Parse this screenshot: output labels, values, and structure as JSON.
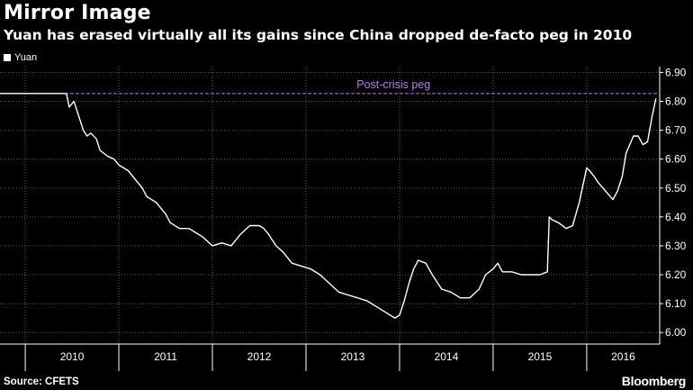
{
  "header": {
    "title": "Mirror Image",
    "subtitle": "Yuan has erased virtually all its gains since China dropped de-facto peg in 2010"
  },
  "legend": {
    "label": "Yuan"
  },
  "footer": {
    "source": "Source: CFETS",
    "brand": "Bloomberg"
  },
  "colors": {
    "background": "#000000",
    "line": "#ffffff",
    "grid": "#5a5a5a",
    "peg": "#b47ee0"
  },
  "chart_data": {
    "type": "line",
    "title": "Mirror Image",
    "subtitle": "Yuan has erased virtually all its gains since China dropped de-facto peg in 2010",
    "xlabel": "",
    "ylabel": "",
    "y_axis_side": "right",
    "ylim": [
      5.96,
      6.92
    ],
    "yticks": [
      6.0,
      6.1,
      6.2,
      6.3,
      6.4,
      6.5,
      6.6,
      6.7,
      6.8,
      6.9
    ],
    "ytick_labels": [
      "6.00",
      "6.10",
      "6.20",
      "6.30",
      "6.40",
      "6.50",
      "6.60",
      "6.70",
      "6.80",
      "6.90"
    ],
    "xlim": [
      2009.73,
      2016.78
    ],
    "x_categories": [
      "2010",
      "2011",
      "2012",
      "2013",
      "2014",
      "2015",
      "2016"
    ],
    "grid": true,
    "legend_position": "top-left",
    "annotations": [
      {
        "type": "hline",
        "y": 6.827,
        "label": "Post-crisis peg",
        "style": "dashed"
      }
    ],
    "series": [
      {
        "name": "Yuan",
        "x": [
          2009.73,
          2009.9,
          2010.1,
          2010.3,
          2010.44,
          2010.47,
          2010.52,
          2010.55,
          2010.6,
          2010.62,
          2010.66,
          2010.7,
          2010.76,
          2010.8,
          2010.88,
          2010.95,
          2011.0,
          2011.1,
          2011.2,
          2011.25,
          2011.3,
          2011.4,
          2011.5,
          2011.55,
          2011.65,
          2011.75,
          2011.8,
          2011.9,
          2012.0,
          2012.1,
          2012.2,
          2012.3,
          2012.4,
          2012.5,
          2012.55,
          2012.6,
          2012.68,
          2012.75,
          2012.85,
          2012.95,
          2013.05,
          2013.15,
          2013.25,
          2013.35,
          2013.45,
          2013.55,
          2013.65,
          2013.75,
          2013.85,
          2013.95,
          2014.0,
          2014.05,
          2014.1,
          2014.15,
          2014.2,
          2014.28,
          2014.35,
          2014.45,
          2014.55,
          2014.65,
          2014.75,
          2014.85,
          2014.92,
          2015.0,
          2015.05,
          2015.1,
          2015.2,
          2015.3,
          2015.4,
          2015.5,
          2015.58,
          2015.6,
          2015.63,
          2015.7,
          2015.78,
          2015.85,
          2015.92,
          2016.0,
          2016.03,
          2016.08,
          2016.12,
          2016.2,
          2016.28,
          2016.33,
          2016.38,
          2016.42,
          2016.5,
          2016.55,
          2016.6,
          2016.65,
          2016.7,
          2016.74
        ],
        "values": [
          6.827,
          6.827,
          6.827,
          6.827,
          6.827,
          6.78,
          6.8,
          6.77,
          6.72,
          6.7,
          6.68,
          6.69,
          6.67,
          6.63,
          6.61,
          6.6,
          6.58,
          6.56,
          6.52,
          6.5,
          6.47,
          6.45,
          6.41,
          6.38,
          6.36,
          6.36,
          6.35,
          6.33,
          6.3,
          6.31,
          6.3,
          6.34,
          6.37,
          6.37,
          6.36,
          6.34,
          6.3,
          6.28,
          6.24,
          6.23,
          6.22,
          6.2,
          6.17,
          6.14,
          6.13,
          6.12,
          6.11,
          6.09,
          6.07,
          6.05,
          6.06,
          6.11,
          6.17,
          6.22,
          6.25,
          6.24,
          6.2,
          6.15,
          6.14,
          6.12,
          6.12,
          6.15,
          6.2,
          6.22,
          6.24,
          6.21,
          6.21,
          6.2,
          6.2,
          6.2,
          6.21,
          6.4,
          6.39,
          6.38,
          6.36,
          6.37,
          6.45,
          6.57,
          6.56,
          6.54,
          6.52,
          6.49,
          6.46,
          6.49,
          6.54,
          6.62,
          6.68,
          6.68,
          6.65,
          6.66,
          6.75,
          6.81
        ]
      }
    ]
  }
}
